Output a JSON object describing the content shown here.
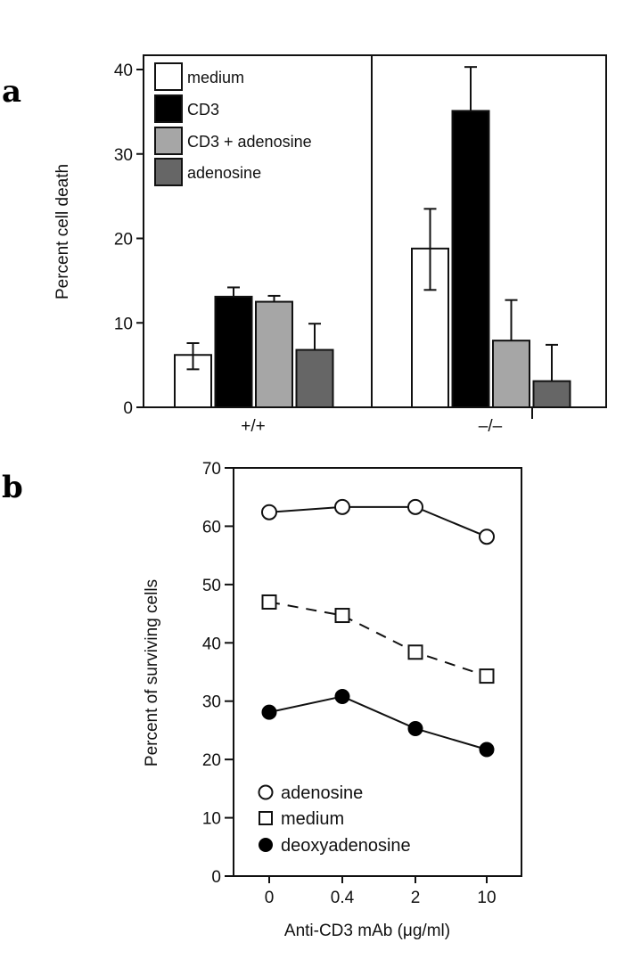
{
  "chart_data": [
    {
      "panel": "a",
      "type": "bar",
      "ylabel": "Percent cell death",
      "xlabel": "",
      "ylim": [
        0,
        40
      ],
      "yticks": [
        0,
        10,
        20,
        30,
        40
      ],
      "grid": false,
      "legend_position": "top-left",
      "categories": [
        "+/+",
        "–/–"
      ],
      "series": [
        {
          "name": "medium",
          "color": "#ffffff",
          "values": [
            6.2,
            18.8
          ],
          "err_upper": [
            7.6,
            23.5
          ],
          "err_lower": [
            4.5,
            13.9
          ]
        },
        {
          "name": "CD3",
          "color": "#000000",
          "values": [
            13.1,
            35.1
          ],
          "err_upper": [
            14.2,
            40.3
          ],
          "err_lower": [
            null,
            null
          ]
        },
        {
          "name": "CD3 + adenosine",
          "color": "#a6a6a6",
          "values": [
            12.5,
            7.9
          ],
          "err_upper": [
            13.2,
            12.7
          ],
          "err_lower": [
            null,
            null
          ]
        },
        {
          "name": "adenosine",
          "color": "#666666",
          "values": [
            6.8,
            3.1
          ],
          "err_upper": [
            9.9,
            7.4
          ],
          "err_lower": [
            null,
            null
          ]
        }
      ]
    },
    {
      "panel": "b",
      "type": "line",
      "ylabel": "Percent of surviving cells",
      "xlabel": "Anti-CD3 mAb (μg/ml)",
      "ylim": [
        0,
        70
      ],
      "yticks": [
        0,
        10,
        20,
        30,
        40,
        50,
        60,
        70
      ],
      "x": [
        "0",
        "0.4",
        "2",
        "10"
      ],
      "grid": false,
      "legend_position": "bottom-left",
      "series": [
        {
          "name": "adenosine",
          "marker": "open-circle",
          "line": "solid",
          "values": [
            62.4,
            63.3,
            63.3,
            58.2
          ]
        },
        {
          "name": "medium",
          "marker": "open-square",
          "line": "dashed",
          "values": [
            47.0,
            44.7,
            38.4,
            34.3
          ]
        },
        {
          "name": "deoxyadenosine",
          "marker": "filled-circle",
          "line": "solid",
          "values": [
            28.1,
            30.8,
            25.3,
            21.7
          ]
        }
      ]
    }
  ],
  "labels": {
    "panel_a": "a",
    "panel_b": "b"
  }
}
